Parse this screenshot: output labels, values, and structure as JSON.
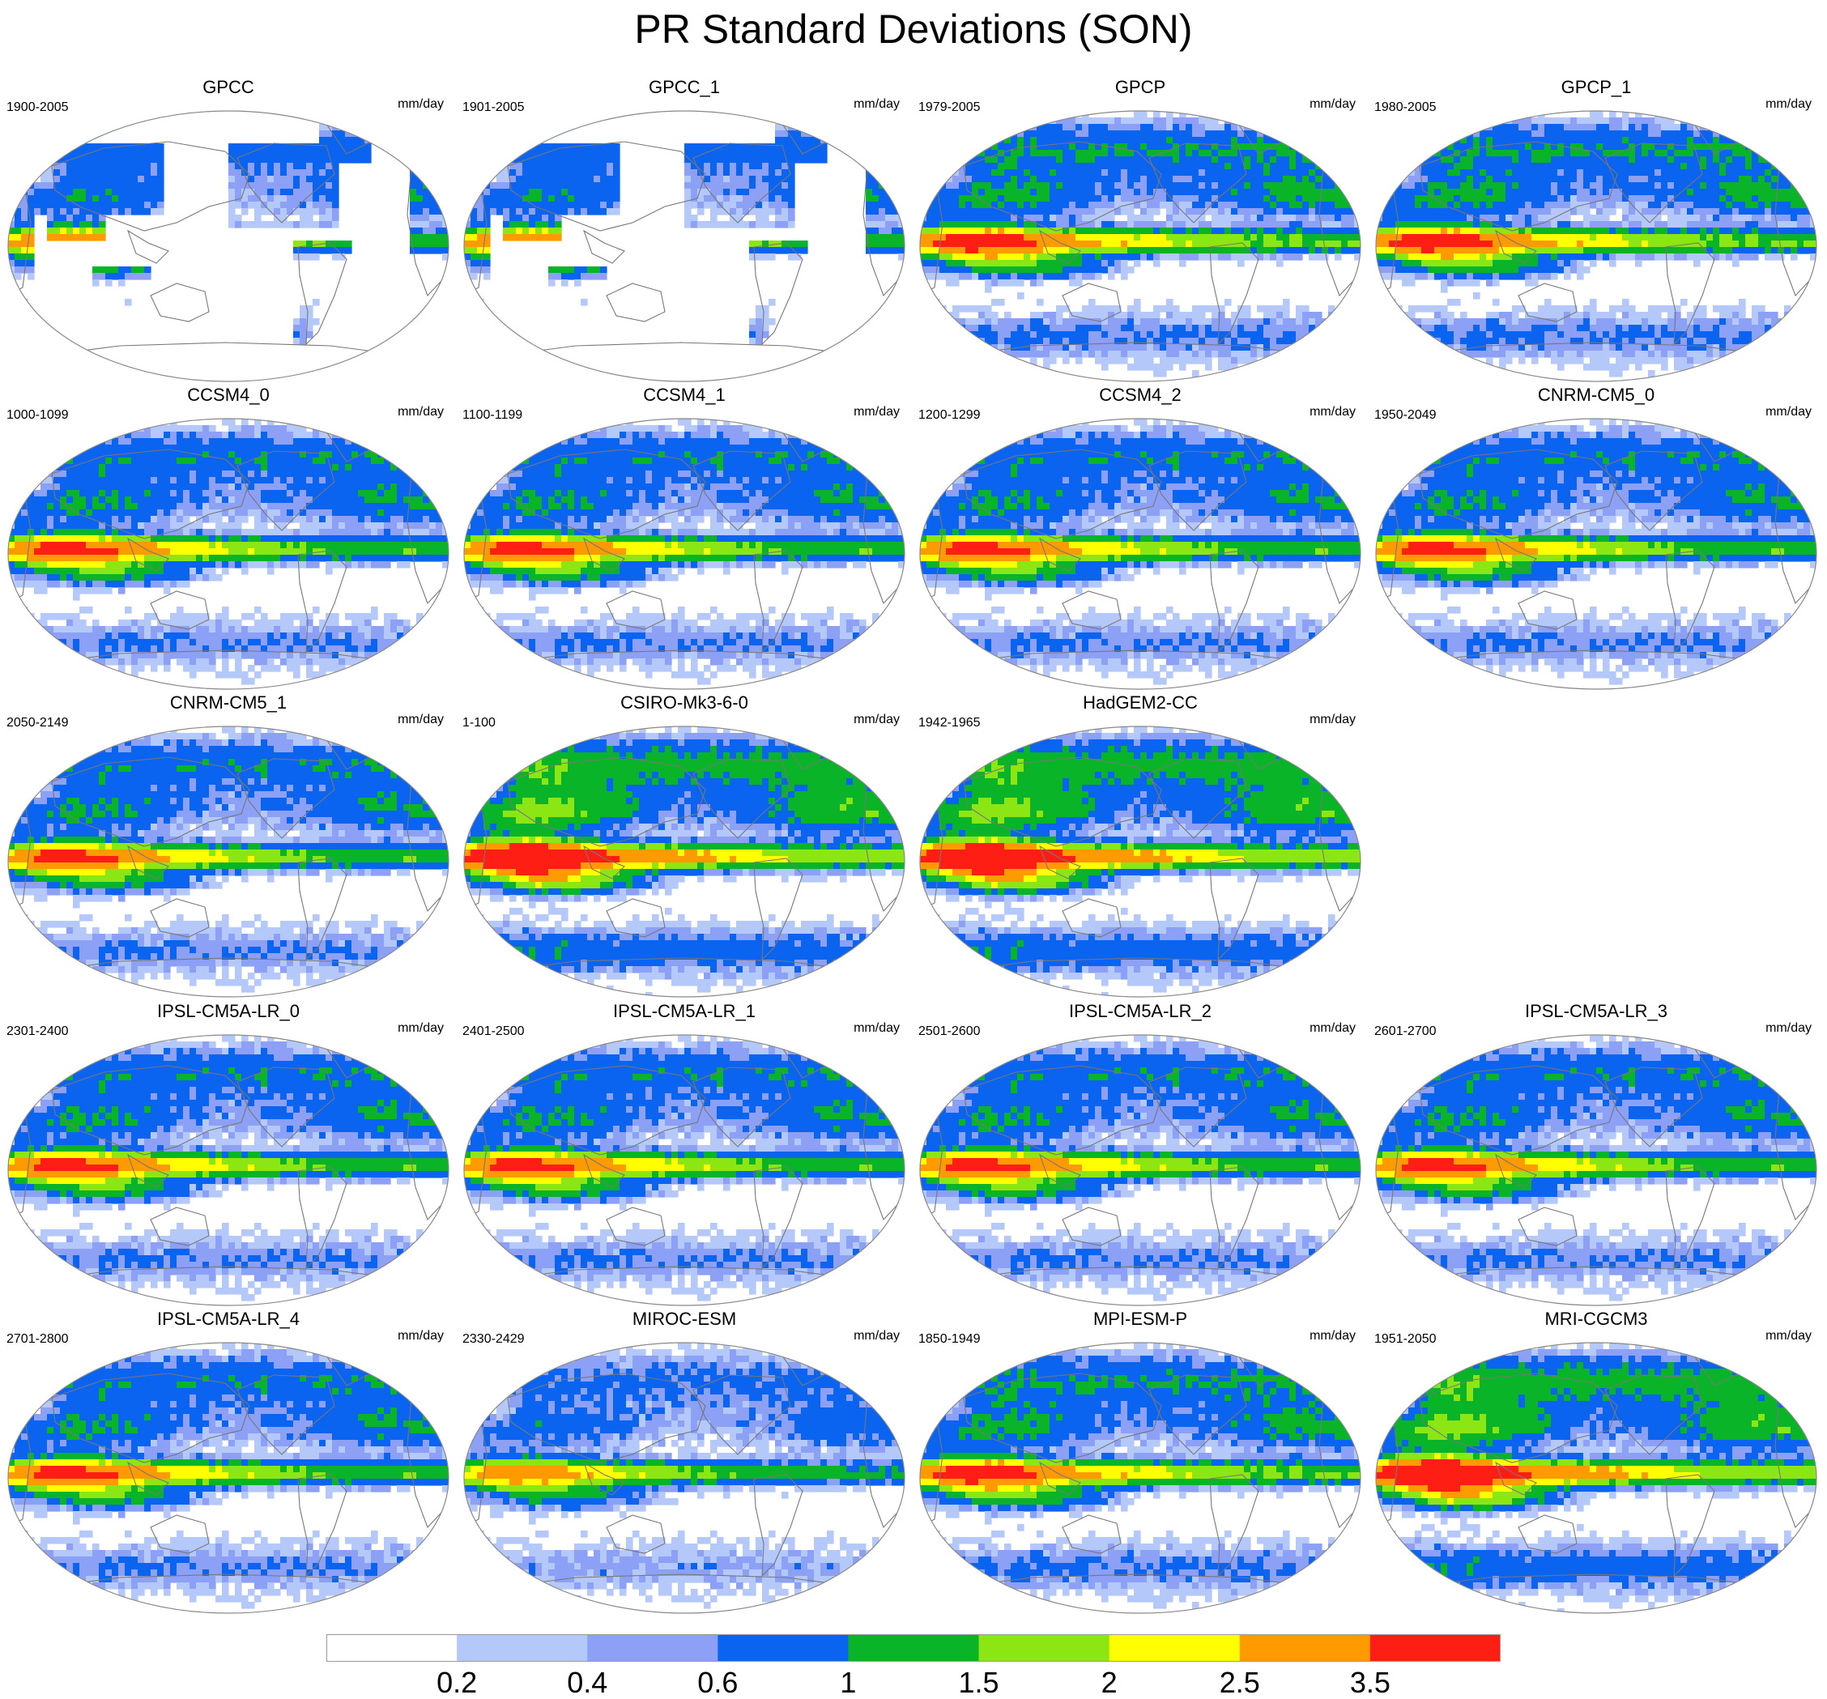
{
  "chart_data": {
    "type": "heatmap",
    "title": "PR Standard Deviations (SON)",
    "units": "mm/day",
    "colorbar": {
      "boundaries": [
        "0.2",
        "0.4",
        "0.6",
        "1",
        "1.5",
        "2",
        "2.5",
        "3.5"
      ],
      "colors": [
        "#ffffff",
        "#b4c8fa",
        "#8ca0f5",
        "#0a64f0",
        "#0ab428",
        "#8ce614",
        "#ffff00",
        "#ff9b00",
        "#ff1e14"
      ]
    },
    "panels": [
      {
        "name": "GPCC",
        "years": "1900-2005",
        "kind": "land"
      },
      {
        "name": "GPCC_1",
        "years": "1901-2005",
        "kind": "land"
      },
      {
        "name": "GPCP",
        "years": "1979-2005",
        "kind": "obs"
      },
      {
        "name": "GPCP_1",
        "years": "1980-2005",
        "kind": "obs"
      },
      {
        "name": "CCSM4_0",
        "years": "1000-1099",
        "kind": "model"
      },
      {
        "name": "CCSM4_1",
        "years": "1100-1199",
        "kind": "model"
      },
      {
        "name": "CCSM4_2",
        "years": "1200-1299",
        "kind": "model"
      },
      {
        "name": "CNRM-CM5_0",
        "years": "1950-2049",
        "kind": "model"
      },
      {
        "name": "CNRM-CM5_1",
        "years": "2050-2149",
        "kind": "model"
      },
      {
        "name": "CSIRO-Mk3-6-0",
        "years": "1-100",
        "kind": "strong"
      },
      {
        "name": "HadGEM2-CC",
        "years": "1942-1965",
        "kind": "strong"
      },
      {
        "name": "IPSL-CM5A-LR_0",
        "years": "2301-2400",
        "kind": "model"
      },
      {
        "name": "IPSL-CM5A-LR_1",
        "years": "2401-2500",
        "kind": "model"
      },
      {
        "name": "IPSL-CM5A-LR_2",
        "years": "2501-2600",
        "kind": "model"
      },
      {
        "name": "IPSL-CM5A-LR_3",
        "years": "2601-2700",
        "kind": "model"
      },
      {
        "name": "IPSL-CM5A-LR_4",
        "years": "2701-2800",
        "kind": "model"
      },
      {
        "name": "MIROC-ESM",
        "years": "2330-2429",
        "kind": "weak"
      },
      {
        "name": "MPI-ESM-P",
        "years": "1850-1949",
        "kind": "obs"
      },
      {
        "name": "MRI-CGCM3",
        "years": "1951-2050",
        "kind": "strong"
      }
    ]
  }
}
